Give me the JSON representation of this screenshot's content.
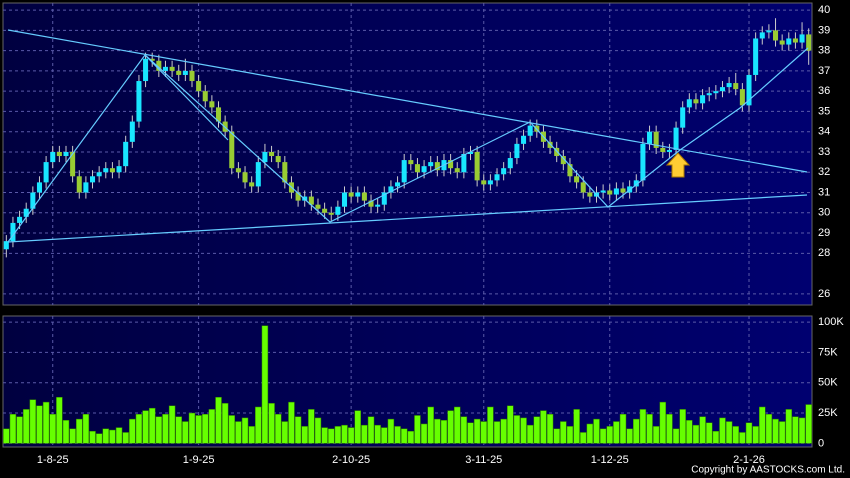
{
  "chart_data": [
    {
      "type": "candlestick",
      "open": [
        28.2,
        28.6,
        29.5,
        29.8,
        30.2,
        31,
        31.5,
        32.5,
        33,
        32.8,
        33,
        31.8,
        31,
        31.5,
        31.8,
        32,
        32.2,
        32,
        32.3,
        33.5,
        34.5,
        36.5,
        37.6,
        37.5,
        37,
        37.2,
        37,
        36.8,
        37,
        36.5,
        36,
        35.5,
        35.2,
        34.5,
        34,
        32.2,
        32,
        31.5,
        31.3,
        32.5,
        33,
        32.8,
        32.5,
        31.5,
        31,
        30.6,
        30.8,
        30.4,
        30.2,
        30,
        29.9,
        30.3,
        31,
        30.8,
        31,
        30.6,
        30.3,
        30.4,
        31,
        31.3,
        31.5,
        32.6,
        32.4,
        32,
        32.3,
        32.5,
        32.1,
        32.6,
        32.2,
        32,
        32.9,
        33,
        31.6,
        31.4,
        31.6,
        31.9,
        32.2,
        32.7,
        33.4,
        33.8,
        34.3,
        34,
        33.5,
        33.2,
        32.8,
        32.4,
        31.8,
        31.5,
        31,
        30.8,
        31,
        31.1,
        30.9,
        31.2,
        31,
        31.3,
        31.6,
        33.4,
        34,
        33.2,
        33,
        33.1,
        34.2,
        35.2,
        35.6,
        35.4,
        35.8,
        35.9,
        36,
        36.2,
        36.4,
        36.1,
        35.3,
        36.8,
        38.6,
        38.9,
        39,
        38.5,
        38.3,
        38.6,
        38.4,
        38.8
      ],
      "high": [
        28.9,
        29.8,
        30.1,
        30.5,
        31.3,
        31.8,
        32.8,
        33.3,
        33.3,
        33.3,
        33.3,
        32.1,
        31.8,
        32.1,
        32.3,
        32.5,
        32.5,
        32.6,
        33.8,
        34.8,
        36.8,
        37.9,
        37.9,
        37.8,
        37.5,
        37.5,
        37.3,
        37.6,
        37.3,
        36.8,
        36.3,
        35.8,
        35.5,
        34.8,
        34.3,
        32.5,
        32.3,
        31.8,
        32.8,
        33.4,
        33.3,
        33.1,
        32.8,
        31.8,
        31.3,
        31.1,
        31.1,
        30.7,
        30.5,
        30.3,
        30.6,
        31.3,
        31.3,
        31.3,
        31.3,
        30.9,
        30.7,
        31.3,
        31.6,
        31.8,
        32.9,
        32.9,
        32.7,
        32.6,
        32.8,
        32.8,
        32.9,
        32.9,
        32.5,
        33.2,
        33.3,
        33.3,
        31.9,
        31.9,
        32.2,
        32.5,
        33,
        33.7,
        34.1,
        34.6,
        34.6,
        34.3,
        33.8,
        33.5,
        33.1,
        32.7,
        32.1,
        31.8,
        31.3,
        31.3,
        31.4,
        31.4,
        31.5,
        31.5,
        31.6,
        31.9,
        33.7,
        34.3,
        34.3,
        33.5,
        33.4,
        34.5,
        35.5,
        35.9,
        35.9,
        36.1,
        36.2,
        36.3,
        36.5,
        36.7,
        36.9,
        36.4,
        37.1,
        38.9,
        39.2,
        39.3,
        39.6,
        38.8,
        38.9,
        38.9,
        39.4,
        39.1
      ],
      "low": [
        27.8,
        28.3,
        29.2,
        29.5,
        29.9,
        30.7,
        31.2,
        32.2,
        32.5,
        32.5,
        31.5,
        30.7,
        30.7,
        31.2,
        31.5,
        31.7,
        31.7,
        31.7,
        32,
        33.2,
        34.2,
        36.2,
        37.2,
        36.7,
        36.7,
        36.7,
        36.5,
        36.5,
        36.2,
        35.7,
        35.2,
        34.9,
        34.2,
        33.7,
        31.9,
        31.7,
        31.2,
        31,
        31,
        32.2,
        32.5,
        32.2,
        31.2,
        30.7,
        30.3,
        30.3,
        30.1,
        29.9,
        29.7,
        29.6,
        29.6,
        30,
        30.5,
        30.5,
        30.3,
        30,
        30,
        30.1,
        30.7,
        31,
        31.2,
        32.1,
        31.7,
        31.7,
        32,
        31.8,
        31.8,
        31.9,
        31.7,
        31.7,
        32.6,
        31.3,
        31.1,
        31.1,
        31.3,
        31.6,
        31.9,
        32.4,
        33.1,
        33.5,
        33.7,
        33.2,
        32.9,
        32.5,
        32.1,
        31.5,
        31.2,
        30.7,
        30.5,
        30.5,
        30.7,
        30.6,
        30.6,
        30.7,
        30.7,
        31,
        31.3,
        33.1,
        32.9,
        32.7,
        32.7,
        32.8,
        33.9,
        34.9,
        35.1,
        35.1,
        35.5,
        35.6,
        35.7,
        35.9,
        35.8,
        35,
        35,
        36.5,
        38.3,
        38.6,
        38.2,
        38,
        38,
        38.1,
        38.1,
        37.3
      ],
      "close": [
        28.6,
        29.5,
        29.8,
        30.2,
        31,
        31.5,
        32.5,
        33,
        32.8,
        33,
        31.8,
        31,
        31.5,
        31.8,
        32,
        32.2,
        32,
        32.3,
        33.5,
        34.5,
        36.5,
        37.6,
        37.5,
        37,
        37.2,
        37,
        36.8,
        37,
        36.5,
        36,
        35.5,
        35.2,
        34.5,
        34,
        32.2,
        32,
        31.5,
        31.3,
        32.5,
        33,
        32.8,
        32.5,
        31.5,
        31,
        30.6,
        30.8,
        30.4,
        30.2,
        30,
        29.9,
        30.3,
        31,
        30.8,
        31,
        30.6,
        30.3,
        30.4,
        31,
        31.3,
        31.5,
        32.6,
        32.4,
        32,
        32.3,
        32.5,
        32.1,
        32.6,
        32.2,
        32,
        32.9,
        33,
        31.6,
        31.4,
        31.6,
        31.9,
        32.2,
        32.7,
        33.4,
        33.8,
        34.3,
        34,
        33.5,
        33.2,
        32.8,
        32.4,
        31.8,
        31.5,
        31,
        30.8,
        31,
        31.1,
        30.9,
        31.2,
        31,
        31.3,
        31.6,
        33.4,
        34,
        33.2,
        33,
        33.1,
        34.2,
        35.2,
        35.6,
        35.4,
        35.8,
        35.9,
        36,
        36.2,
        36.4,
        36.1,
        35.3,
        36.8,
        38.6,
        38.9,
        39,
        38.5,
        38.3,
        38.6,
        38.4,
        38.8,
        38
      ],
      "up_color": "#19e6ff",
      "down_color": "#99cc33",
      "ylim": [
        25.45,
        40.35
      ],
      "yticks": [
        26,
        28,
        29,
        30,
        31,
        32,
        33,
        34,
        35,
        36,
        37,
        38,
        39,
        40
      ],
      "grid": true
    },
    {
      "type": "bar",
      "categories": [
        null,
        null,
        null,
        null,
        null,
        null,
        null,
        "1-8-25",
        null,
        null,
        null,
        null,
        null,
        null,
        null,
        null,
        null,
        null,
        null,
        null,
        null,
        null,
        null,
        null,
        null,
        null,
        null,
        null,
        null,
        "1-9-25",
        null,
        null,
        null,
        null,
        null,
        null,
        null,
        null,
        null,
        null,
        null,
        null,
        null,
        null,
        null,
        null,
        null,
        null,
        null,
        null,
        null,
        null,
        "2-10-25",
        null,
        null,
        null,
        null,
        null,
        null,
        null,
        null,
        null,
        null,
        null,
        null,
        null,
        null,
        null,
        null,
        null,
        null,
        null,
        "3-11-25",
        null,
        null,
        null,
        null,
        null,
        null,
        null,
        null,
        null,
        null,
        null,
        null,
        null,
        null,
        null,
        null,
        null,
        null,
        "1-12-25",
        null,
        null,
        null,
        null,
        null,
        null,
        null,
        null,
        null,
        null,
        null,
        null,
        null,
        null,
        null,
        null,
        null,
        null,
        null,
        null,
        "2-1-26",
        null,
        null,
        null,
        null,
        null,
        null,
        null,
        null,
        null
      ],
      "values": [
        12000,
        24000,
        22000,
        28000,
        36000,
        31000,
        34000,
        24000,
        38000,
        19000,
        12000,
        20000,
        24000,
        10000,
        8000,
        12000,
        11000,
        13000,
        9000,
        20000,
        24000,
        27000,
        29000,
        22000,
        24000,
        31000,
        22000,
        18000,
        25000,
        23000,
        24000,
        28000,
        38000,
        33000,
        23000,
        18000,
        21000,
        14000,
        30000,
        97000,
        33000,
        24000,
        18000,
        34000,
        22000,
        14000,
        28000,
        21000,
        13000,
        12000,
        14000,
        15000,
        13000,
        27000,
        15000,
        22000,
        15000,
        13000,
        20000,
        14000,
        12000,
        10000,
        23000,
        16000,
        30000,
        20000,
        19000,
        27000,
        30000,
        22000,
        17000,
        20000,
        18000,
        30000,
        18000,
        20000,
        31000,
        23000,
        21000,
        15000,
        22000,
        27000,
        24000,
        12000,
        18000,
        14000,
        28000,
        9000,
        16000,
        20000,
        12000,
        14000,
        18000,
        24000,
        12000,
        20000,
        28000,
        24000,
        14000,
        34000,
        24000,
        12000,
        28000,
        19000,
        15000,
        22000,
        17000,
        10000,
        21000,
        18000,
        14000,
        9000,
        17000,
        14000,
        30000,
        24000,
        20000,
        18000,
        28000,
        22000,
        21000,
        32000
      ],
      "color": "#66ff00",
      "ylim": [
        -3000,
        105000
      ],
      "yticks": [
        0,
        {
          "value": 25000,
          "label": "25K"
        },
        {
          "value": 50000,
          "label": "50K"
        },
        {
          "value": 75000,
          "label": "75K"
        },
        {
          "value": 100000,
          "label": "100K"
        }
      ],
      "grid": true,
      "credit": "Copyright by AASTOCKS.com Ltd."
    }
  ]
}
